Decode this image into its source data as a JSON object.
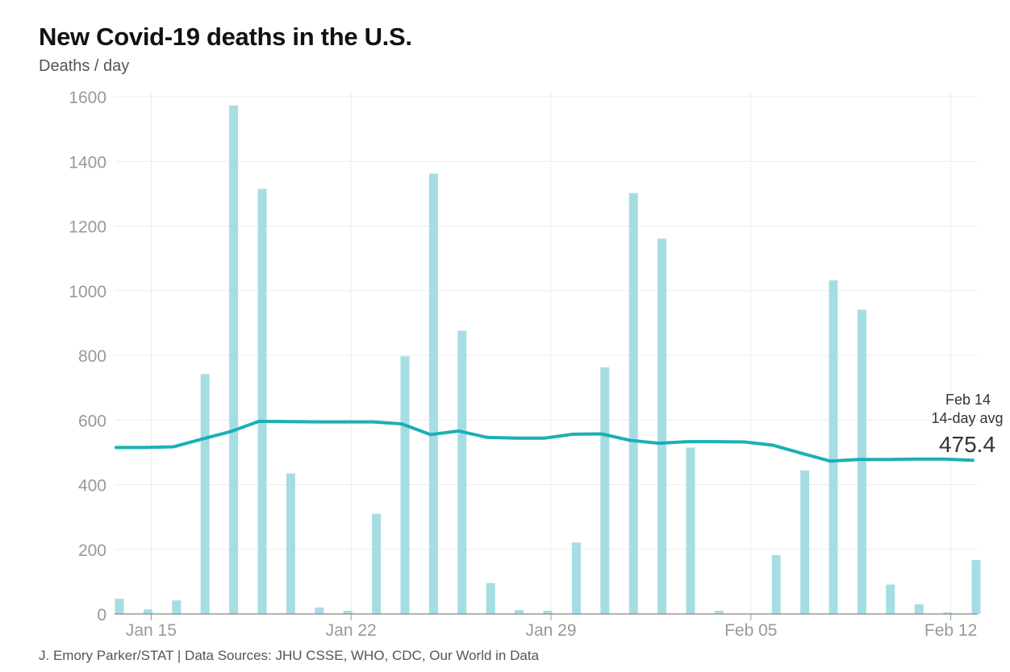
{
  "chart_data": {
    "type": "bar",
    "title": "New Covid-19 deaths in the U.S.",
    "subtitle": "Deaths / day",
    "source": "J. Emory Parker/STAT | Data Sources: JHU CSSE, WHO, CDC, Our World in Data",
    "ylim": [
      0,
      1600
    ],
    "yticks": [
      0,
      200,
      400,
      600,
      800,
      1000,
      1200,
      1400,
      1600
    ],
    "xticks": [
      {
        "date": "Jan 15",
        "label": "Jan 15"
      },
      {
        "date": "Jan 22",
        "label": "Jan 22"
      },
      {
        "date": "Jan 29",
        "label": "Jan 29"
      },
      {
        "date": "Feb 05",
        "label": "Feb 05"
      },
      {
        "date": "Feb 12",
        "label": "Feb 12"
      }
    ],
    "grid": true,
    "categories": [
      "Jan 14",
      "Jan 15",
      "Jan 16",
      "Jan 17",
      "Jan 18",
      "Jan 19",
      "Jan 20",
      "Jan 21",
      "Jan 22",
      "Jan 23",
      "Jan 24",
      "Jan 25",
      "Jan 26",
      "Jan 27",
      "Jan 28",
      "Jan 29",
      "Jan 30",
      "Jan 31",
      "Feb 01",
      "Feb 02",
      "Feb 03",
      "Feb 04",
      "Feb 05",
      "Feb 06",
      "Feb 07",
      "Feb 08",
      "Feb 09",
      "Feb 10",
      "Feb 11",
      "Feb 12",
      "Feb 13"
    ],
    "series": [
      {
        "type": "bar",
        "color": "#a6dde2",
        "values": [
          47,
          14,
          42,
          742,
          1573,
          1315,
          435,
          20,
          10,
          310,
          797,
          1362,
          876,
          96,
          12,
          10,
          221,
          763,
          1302,
          1161,
          515,
          10,
          0,
          182,
          444,
          1032,
          941,
          91,
          30,
          5,
          167
        ]
      },
      {
        "type": "line",
        "color": "#1cafb6",
        "values": [
          515,
          515,
          517,
          541,
          564,
          596,
          595,
          594,
          594,
          594,
          588,
          555,
          566,
          546,
          544,
          544,
          556,
          557,
          537,
          528,
          533,
          533,
          532,
          522,
          497,
          473,
          478,
          478,
          479,
          479,
          475.4
        ]
      }
    ],
    "annotation": {
      "date": "Feb 14",
      "label": "14-day avg",
      "value": "475.4"
    }
  }
}
